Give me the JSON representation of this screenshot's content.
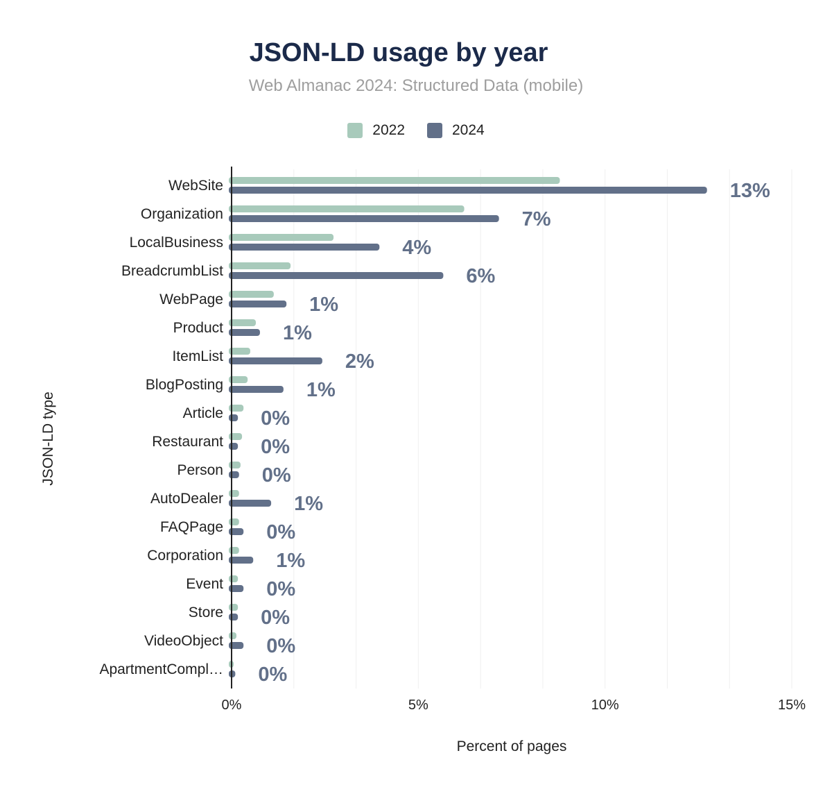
{
  "chart_data": {
    "type": "bar",
    "orientation": "horizontal",
    "title": "JSON-LD usage by year",
    "subtitle": "Web Almanac 2024: Structured Data (mobile)",
    "xlabel": "Percent of pages",
    "ylabel": "JSON-LD type",
    "xlim": [
      0,
      15
    ],
    "xticks": [
      0,
      5,
      10,
      15
    ],
    "xtick_labels": [
      "0%",
      "5%",
      "10%",
      "15%"
    ],
    "grid": true,
    "legend_position": "top",
    "categories": [
      "WebSite",
      "Organization",
      "LocalBusiness",
      "BreadcrumbList",
      "WebPage",
      "Product",
      "ItemList",
      "BlogPosting",
      "Article",
      "Restaurant",
      "Person",
      "AutoDealer",
      "FAQPage",
      "Corporation",
      "Event",
      "Store",
      "VideoObject",
      "ApartmentCompl…"
    ],
    "series": [
      {
        "name": "2022",
        "color": "#a8cabb",
        "values": [
          8.79,
          6.23,
          2.73,
          1.58,
          1.13,
          0.65,
          0.5,
          0.43,
          0.32,
          0.28,
          0.24,
          0.2,
          0.2,
          0.2,
          0.17,
          0.17,
          0.13,
          0.05
        ]
      },
      {
        "name": "2024",
        "color": "#627089",
        "values": [
          12.73,
          7.16,
          3.96,
          5.67,
          1.47,
          0.76,
          2.43,
          1.39,
          0.17,
          0.17,
          0.2,
          1.06,
          0.32,
          0.58,
          0.32,
          0.17,
          0.32,
          0.1
        ]
      }
    ],
    "data_labels": [
      "13%",
      "7%",
      "4%",
      "6%",
      "1%",
      "1%",
      "2%",
      "1%",
      "0%",
      "0%",
      "0%",
      "1%",
      "0%",
      "1%",
      "0%",
      "0%",
      "0%",
      "0%"
    ]
  }
}
